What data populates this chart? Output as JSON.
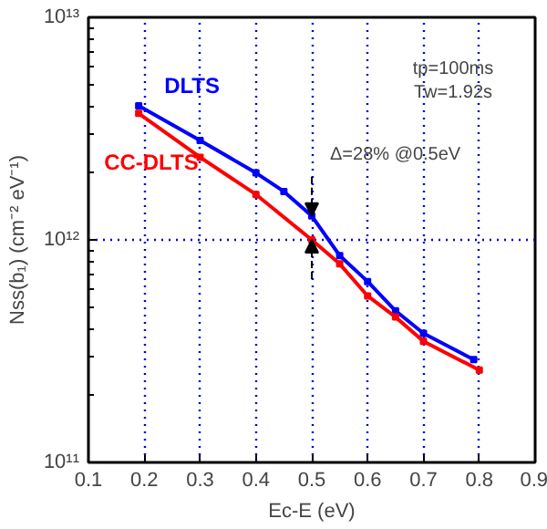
{
  "chart_data": {
    "type": "line",
    "xlabel": "Ec-E (eV)",
    "ylabel": "Nss(b₁) (cm⁻² eV⁻¹)",
    "log": "y",
    "xlim": [
      0.1,
      0.9
    ],
    "xticks": [
      0.1,
      0.2,
      0.3,
      0.4,
      0.5,
      0.6,
      0.7,
      0.8,
      0.9
    ],
    "ylim": [
      100000000000.0,
      10000000000000.0
    ],
    "yticks": [
      {
        "value": 100000000000.0,
        "label": "10¹¹"
      },
      {
        "value": 1000000000000.0,
        "label": "10¹²"
      },
      {
        "value": 10000000000000.0,
        "label": "10¹³"
      }
    ],
    "grid": true,
    "marker": "square",
    "line_style": "solid",
    "series": [
      {
        "name": "DLTS",
        "color": "#0000ff",
        "x": [
          0.19,
          0.3,
          0.4,
          0.45,
          0.5,
          0.55,
          0.6,
          0.65,
          0.7,
          0.79
        ],
        "values": [
          4000000000000.0,
          2800000000000.0,
          2000000000000.0,
          1650000000000.0,
          1280000000000.0,
          850000000000.0,
          650000000000.0,
          480000000000.0,
          380000000000.0,
          290000000000.0
        ]
      },
      {
        "name": "CC-DLTS",
        "color": "#ff0000",
        "x": [
          0.19,
          0.3,
          0.4,
          0.5,
          0.55,
          0.6,
          0.65,
          0.7,
          0.8
        ],
        "values": [
          3700000000000.0,
          2350000000000.0,
          1600000000000.0,
          1000000000000.0,
          780000000000.0,
          560000000000.0,
          450000000000.0,
          350000000000.0,
          260000000000.0
        ]
      }
    ],
    "annotations": [
      "tp=100ms",
      "Tw=1.92s",
      {
        "text": "Δ=28% @0.5eV",
        "x": 0.5,
        "y": 1280000000000.0
      }
    ]
  }
}
